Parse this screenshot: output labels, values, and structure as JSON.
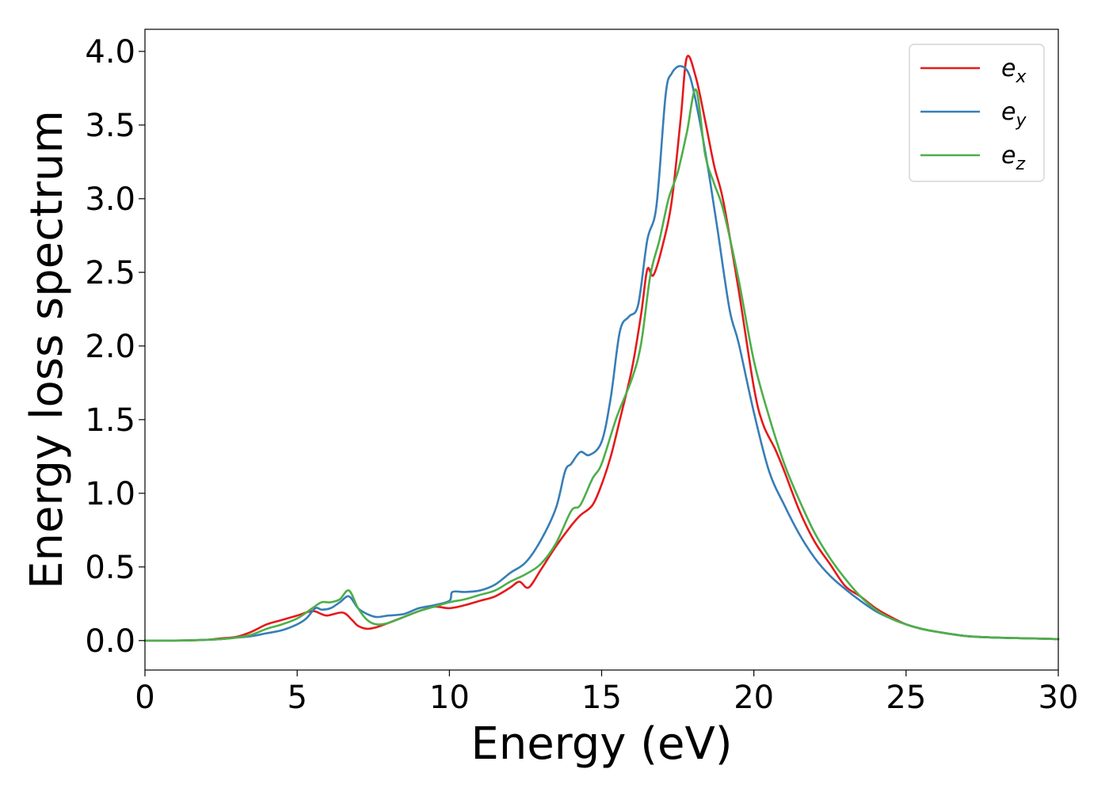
{
  "chart_data": {
    "type": "line",
    "xlabel": "Energy (eV)",
    "ylabel": "Energy loss spectrum",
    "xlim": [
      0,
      30
    ],
    "ylim": [
      -0.2,
      4.15
    ],
    "x_ticks": [
      "0",
      "5",
      "10",
      "15",
      "20",
      "25",
      "30"
    ],
    "y_ticks": [
      "0.0",
      "0.5",
      "1.0",
      "1.5",
      "2.0",
      "2.5",
      "3.0",
      "3.5",
      "4.0"
    ],
    "grid": false,
    "legend_position": "top-right",
    "series": [
      {
        "name": "e",
        "subscript": "x",
        "color": "#e41a1c",
        "points": [
          [
            0,
            0
          ],
          [
            1,
            0
          ],
          [
            2,
            0.005
          ],
          [
            2.5,
            0.015
          ],
          [
            3,
            0.025
          ],
          [
            3.5,
            0.06
          ],
          [
            4,
            0.11
          ],
          [
            4.5,
            0.14
          ],
          [
            5,
            0.17
          ],
          [
            5.5,
            0.2
          ],
          [
            5.8,
            0.18
          ],
          [
            6,
            0.17
          ],
          [
            6.5,
            0.19
          ],
          [
            6.8,
            0.14
          ],
          [
            7,
            0.1
          ],
          [
            7.3,
            0.08
          ],
          [
            7.6,
            0.09
          ],
          [
            8,
            0.12
          ],
          [
            8.5,
            0.16
          ],
          [
            9,
            0.2
          ],
          [
            9.5,
            0.23
          ],
          [
            10,
            0.22
          ],
          [
            10.5,
            0.24
          ],
          [
            11,
            0.27
          ],
          [
            11.5,
            0.3
          ],
          [
            12,
            0.36
          ],
          [
            12.3,
            0.4
          ],
          [
            12.6,
            0.36
          ],
          [
            13,
            0.48
          ],
          [
            13.5,
            0.64
          ],
          [
            14,
            0.78
          ],
          [
            14.3,
            0.85
          ],
          [
            14.7,
            0.92
          ],
          [
            15,
            1.06
          ],
          [
            15.3,
            1.25
          ],
          [
            15.6,
            1.5
          ],
          [
            16,
            1.85
          ],
          [
            16.3,
            2.22
          ],
          [
            16.5,
            2.52
          ],
          [
            16.7,
            2.48
          ],
          [
            17,
            2.68
          ],
          [
            17.3,
            2.98
          ],
          [
            17.6,
            3.55
          ],
          [
            17.8,
            3.96
          ],
          [
            18.1,
            3.82
          ],
          [
            18.4,
            3.53
          ],
          [
            18.7,
            3.22
          ],
          [
            19,
            2.98
          ],
          [
            19.5,
            2.38
          ],
          [
            20,
            1.72
          ],
          [
            20.3,
            1.47
          ],
          [
            20.7,
            1.3
          ],
          [
            21,
            1.15
          ],
          [
            21.5,
            0.88
          ],
          [
            22,
            0.67
          ],
          [
            22.5,
            0.52
          ],
          [
            23,
            0.37
          ],
          [
            23.5,
            0.3
          ],
          [
            24,
            0.22
          ],
          [
            24.5,
            0.16
          ],
          [
            25,
            0.11
          ],
          [
            25.5,
            0.08
          ],
          [
            26,
            0.06
          ],
          [
            27,
            0.03
          ],
          [
            28,
            0.02
          ],
          [
            29,
            0.015
          ],
          [
            30,
            0.01
          ]
        ]
      },
      {
        "name": "e",
        "subscript": "y",
        "color": "#377eb8",
        "points": [
          [
            0,
            0
          ],
          [
            1,
            0
          ],
          [
            2,
            0.005
          ],
          [
            2.5,
            0.01
          ],
          [
            3,
            0.02
          ],
          [
            3.5,
            0.03
          ],
          [
            4,
            0.05
          ],
          [
            4.5,
            0.07
          ],
          [
            5,
            0.11
          ],
          [
            5.3,
            0.15
          ],
          [
            5.6,
            0.22
          ],
          [
            5.8,
            0.21
          ],
          [
            6.1,
            0.22
          ],
          [
            6.4,
            0.26
          ],
          [
            6.7,
            0.3
          ],
          [
            7,
            0.22
          ],
          [
            7.3,
            0.18
          ],
          [
            7.6,
            0.16
          ],
          [
            8,
            0.17
          ],
          [
            8.5,
            0.18
          ],
          [
            9,
            0.22
          ],
          [
            9.5,
            0.24
          ],
          [
            10,
            0.27
          ],
          [
            10.1,
            0.33
          ],
          [
            10.5,
            0.33
          ],
          [
            11,
            0.34
          ],
          [
            11.5,
            0.38
          ],
          [
            12,
            0.46
          ],
          [
            12.5,
            0.53
          ],
          [
            13,
            0.68
          ],
          [
            13.5,
            0.9
          ],
          [
            13.8,
            1.15
          ],
          [
            14,
            1.2
          ],
          [
            14.3,
            1.28
          ],
          [
            14.6,
            1.26
          ],
          [
            15,
            1.35
          ],
          [
            15.3,
            1.65
          ],
          [
            15.6,
            2.1
          ],
          [
            15.9,
            2.2
          ],
          [
            16.2,
            2.28
          ],
          [
            16.5,
            2.72
          ],
          [
            16.8,
            2.95
          ],
          [
            17.1,
            3.7
          ],
          [
            17.3,
            3.85
          ],
          [
            17.6,
            3.9
          ],
          [
            17.9,
            3.83
          ],
          [
            18.2,
            3.55
          ],
          [
            18.5,
            3.2
          ],
          [
            18.8,
            2.8
          ],
          [
            19.2,
            2.25
          ],
          [
            19.5,
            2.02
          ],
          [
            20,
            1.55
          ],
          [
            20.5,
            1.15
          ],
          [
            21,
            0.92
          ],
          [
            21.5,
            0.72
          ],
          [
            22,
            0.56
          ],
          [
            22.5,
            0.44
          ],
          [
            23,
            0.35
          ],
          [
            23.5,
            0.27
          ],
          [
            24,
            0.2
          ],
          [
            24.5,
            0.15
          ],
          [
            25,
            0.11
          ],
          [
            25.5,
            0.08
          ],
          [
            26,
            0.06
          ],
          [
            27,
            0.03
          ],
          [
            28,
            0.02
          ],
          [
            29,
            0.015
          ],
          [
            30,
            0.01
          ]
        ]
      },
      {
        "name": "e",
        "subscript": "z",
        "color": "#4daf4a",
        "points": [
          [
            0,
            0
          ],
          [
            1,
            0
          ],
          [
            2,
            0.005
          ],
          [
            2.5,
            0.01
          ],
          [
            3,
            0.02
          ],
          [
            3.5,
            0.04
          ],
          [
            4,
            0.08
          ],
          [
            4.5,
            0.11
          ],
          [
            5,
            0.15
          ],
          [
            5.5,
            0.22
          ],
          [
            5.8,
            0.26
          ],
          [
            6.1,
            0.26
          ],
          [
            6.4,
            0.28
          ],
          [
            6.7,
            0.34
          ],
          [
            7,
            0.22
          ],
          [
            7.3,
            0.14
          ],
          [
            7.6,
            0.11
          ],
          [
            8,
            0.12
          ],
          [
            8.5,
            0.16
          ],
          [
            9,
            0.2
          ],
          [
            9.5,
            0.23
          ],
          [
            10,
            0.26
          ],
          [
            10.5,
            0.28
          ],
          [
            11,
            0.31
          ],
          [
            11.5,
            0.34
          ],
          [
            12,
            0.4
          ],
          [
            12.5,
            0.45
          ],
          [
            13,
            0.52
          ],
          [
            13.5,
            0.66
          ],
          [
            14,
            0.88
          ],
          [
            14.3,
            0.92
          ],
          [
            14.7,
            1.1
          ],
          [
            15,
            1.2
          ],
          [
            15.5,
            1.52
          ],
          [
            16,
            1.78
          ],
          [
            16.3,
            2.02
          ],
          [
            16.6,
            2.48
          ],
          [
            16.9,
            2.72
          ],
          [
            17.2,
            3.0
          ],
          [
            17.5,
            3.18
          ],
          [
            17.8,
            3.45
          ],
          [
            18.1,
            3.74
          ],
          [
            18.4,
            3.3
          ],
          [
            18.7,
            3.1
          ],
          [
            19,
            2.92
          ],
          [
            19.5,
            2.45
          ],
          [
            20,
            1.9
          ],
          [
            20.5,
            1.52
          ],
          [
            21,
            1.2
          ],
          [
            21.5,
            0.95
          ],
          [
            22,
            0.73
          ],
          [
            22.5,
            0.56
          ],
          [
            23,
            0.42
          ],
          [
            23.5,
            0.3
          ],
          [
            24,
            0.21
          ],
          [
            24.5,
            0.15
          ],
          [
            25,
            0.11
          ],
          [
            25.5,
            0.08
          ],
          [
            26,
            0.06
          ],
          [
            27,
            0.03
          ],
          [
            28,
            0.02
          ],
          [
            29,
            0.015
          ],
          [
            30,
            0.01
          ]
        ]
      }
    ]
  }
}
